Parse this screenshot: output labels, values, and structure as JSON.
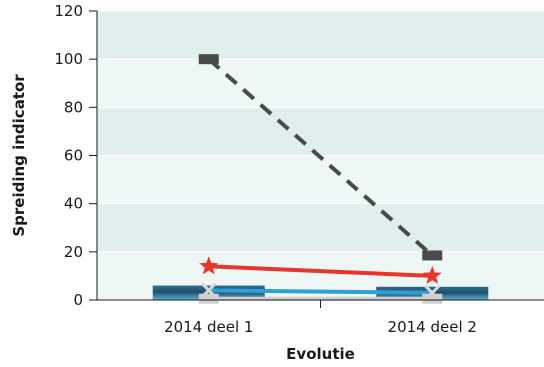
{
  "chart_data": {
    "type": "line",
    "title": "",
    "xlabel": "Evolutie",
    "ylabel": "Spreiding indicator",
    "categories": [
      "2014 deel 1",
      "2014 deel 2"
    ],
    "ylim": [
      0,
      120
    ],
    "yticks": [
      0,
      20,
      40,
      60,
      80,
      100,
      120
    ],
    "grid": true,
    "legend": "none",
    "bars": [
      {
        "values": [
          6,
          5.5
        ],
        "color": "#1f4e6a"
      }
    ],
    "series": [
      {
        "values": [
          100,
          18.5
        ],
        "color": "#4a4a4a",
        "style": "dashed",
        "marker": "square"
      },
      {
        "values": [
          14,
          10
        ],
        "color": "#e8352b",
        "style": "solid",
        "marker": "star"
      },
      {
        "values": [
          4,
          3
        ],
        "color": "#2f9fd8",
        "style": "solid",
        "marker": "x"
      },
      {
        "values": [
          0.5,
          0.5
        ],
        "color": "#d0d0d0",
        "style": "solid",
        "marker": "square"
      }
    ],
    "colors": {
      "band_dark": "#e1eeee",
      "band_light": "#eef6f6",
      "grid": "#ffffff",
      "axis": "#1a1a1a"
    }
  }
}
